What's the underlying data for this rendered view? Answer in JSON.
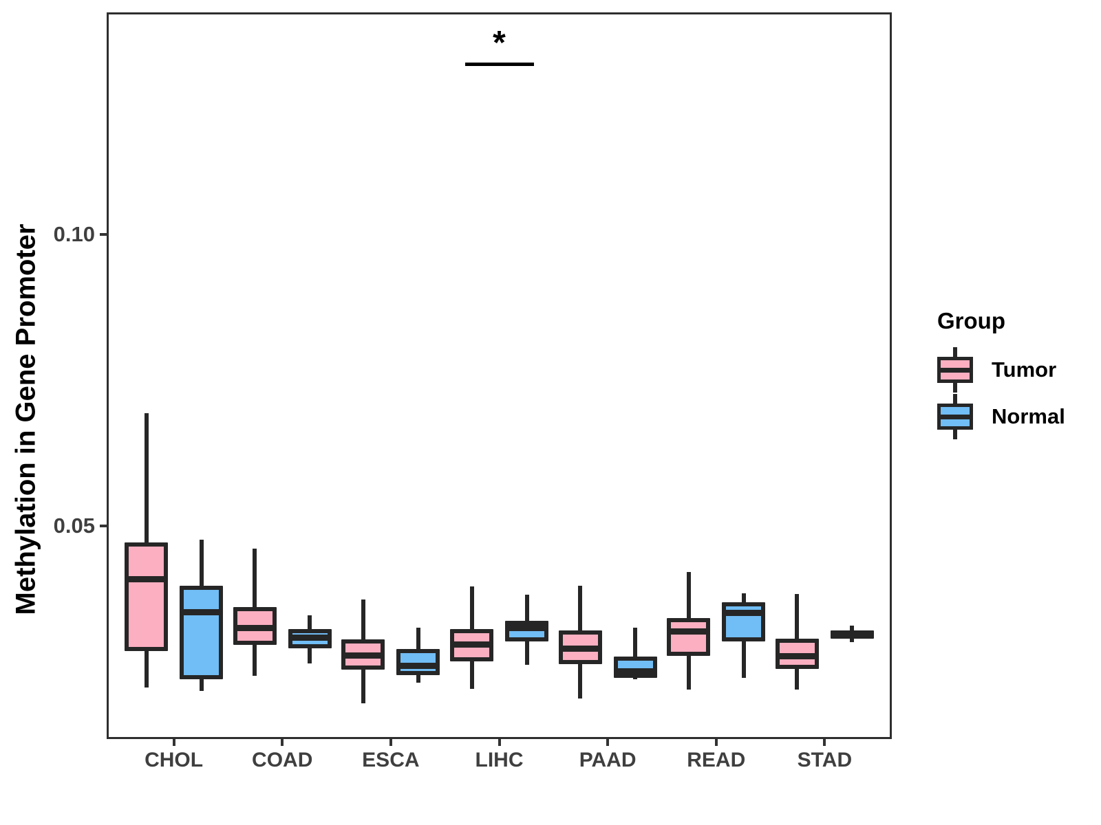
{
  "legend": {
    "title": "Group",
    "entries": [
      {
        "label": "Tumor",
        "color": "#FBAFC1"
      },
      {
        "label": "Normal",
        "color": "#71BDF5"
      }
    ]
  },
  "colors": {
    "tumor_fill": "#FBAFC1",
    "normal_fill": "#71BDF5",
    "box_border": "#262626",
    "axis_text": "#3F3F3F",
    "panel_border": "#2E2E2E"
  },
  "chart_data": {
    "type": "boxplot",
    "title": "",
    "xlabel": "",
    "ylabel": "Methylation in Gene Promoter",
    "categories": [
      "CHOL",
      "COAD",
      "ESCA",
      "LIHC",
      "PAAD",
      "READ",
      "STAD"
    ],
    "yticks": [
      {
        "value": 0.05,
        "label": "0.05"
      },
      {
        "value": 0.1,
        "label": "0.10"
      }
    ],
    "ylim": [
      0.0138,
      0.1377
    ],
    "grid": false,
    "legend_position": "right",
    "series": [
      {
        "name": "Tumor",
        "color": "#FBAFC1",
        "boxes": [
          {
            "min": 0.0223,
            "q1": 0.0285,
            "median": 0.0409,
            "q3": 0.0472,
            "max": 0.0693
          },
          {
            "min": 0.0243,
            "q1": 0.0296,
            "median": 0.0325,
            "q3": 0.0361,
            "max": 0.0461
          },
          {
            "min": 0.0196,
            "q1": 0.0254,
            "median": 0.0278,
            "q3": 0.0305,
            "max": 0.0374
          },
          {
            "min": 0.022,
            "q1": 0.0268,
            "median": 0.0297,
            "q3": 0.0323,
            "max": 0.0396
          },
          {
            "min": 0.0204,
            "q1": 0.0263,
            "median": 0.029,
            "q3": 0.0321,
            "max": 0.0397
          },
          {
            "min": 0.0219,
            "q1": 0.0277,
            "median": 0.032,
            "q3": 0.0342,
            "max": 0.0421
          },
          {
            "min": 0.0219,
            "q1": 0.0255,
            "median": 0.0277,
            "q3": 0.0307,
            "max": 0.0383
          }
        ]
      },
      {
        "name": "Normal",
        "color": "#71BDF5",
        "boxes": [
          {
            "min": 0.0217,
            "q1": 0.0237,
            "median": 0.0353,
            "q3": 0.0397,
            "max": 0.0476
          },
          {
            "min": 0.0264,
            "q1": 0.029,
            "median": 0.0309,
            "q3": 0.0323,
            "max": 0.0347
          },
          {
            "min": 0.0231,
            "q1": 0.0244,
            "median": 0.0261,
            "q3": 0.0289,
            "max": 0.0325
          },
          {
            "min": 0.0262,
            "q1": 0.0302,
            "median": 0.0326,
            "q3": 0.0337,
            "max": 0.0382
          },
          {
            "min": 0.0237,
            "q1": 0.0239,
            "median": 0.0251,
            "q3": 0.0276,
            "max": 0.0325
          },
          {
            "min": 0.0239,
            "q1": 0.0302,
            "median": 0.0351,
            "q3": 0.0369,
            "max": 0.0384
          },
          {
            "min": 0.0301,
            "q1": 0.0307,
            "median": 0.0314,
            "q3": 0.0321,
            "max": 0.0329
          }
        ]
      }
    ],
    "significance": {
      "category": "LIHC",
      "label": "*",
      "line_y": 0.1295
    }
  }
}
